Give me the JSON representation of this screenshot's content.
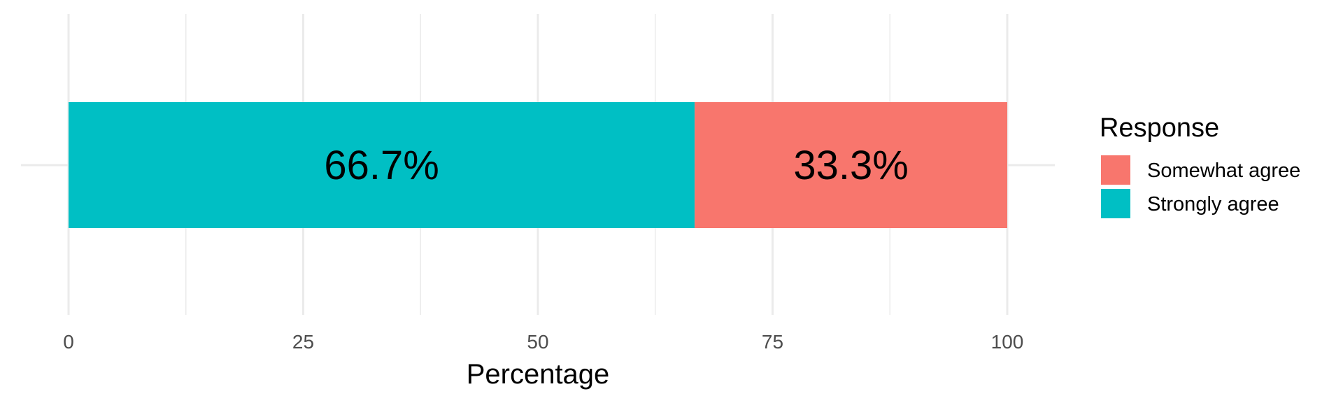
{
  "chart_data": {
    "type": "bar",
    "orientation": "horizontal",
    "stacked": true,
    "categories": [
      ""
    ],
    "series": [
      {
        "name": "Strongly agree",
        "values": [
          66.7
        ],
        "label": "66.7%",
        "color": "#00BFC4"
      },
      {
        "name": "Somewhat agree",
        "values": [
          33.3
        ],
        "label": "33.3%",
        "color": "#F8766D"
      }
    ],
    "xlabel": "Percentage",
    "ylabel": "",
    "xlim": [
      0,
      100
    ],
    "xticks": [
      0,
      25,
      50,
      75,
      100
    ],
    "tick_labels": [
      "0",
      "25",
      "50",
      "75",
      "100"
    ],
    "grid": true,
    "legend": {
      "title": "Response",
      "placement": "right",
      "entries": [
        {
          "label": "Somewhat agree",
          "color": "#F8766D"
        },
        {
          "label": "Strongly agree",
          "color": "#00BFC4"
        }
      ]
    }
  }
}
